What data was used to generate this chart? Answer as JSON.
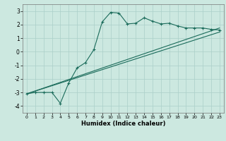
{
  "xlabel": "Humidex (Indice chaleur)",
  "bg_color": "#cce8e0",
  "grid_color": "#aacfc8",
  "line_color": "#1a6b5a",
  "xlim": [
    -0.5,
    23.5
  ],
  "ylim": [
    -4.5,
    3.5
  ],
  "xticks": [
    0,
    1,
    2,
    3,
    4,
    5,
    6,
    7,
    8,
    9,
    10,
    11,
    12,
    13,
    14,
    15,
    16,
    17,
    18,
    19,
    20,
    21,
    22,
    23
  ],
  "yticks": [
    -4,
    -3,
    -2,
    -1,
    0,
    1,
    2,
    3
  ],
  "line1_x": [
    0,
    1,
    2,
    3,
    4,
    5,
    6,
    7,
    8,
    9,
    10,
    11,
    12,
    13,
    14,
    15,
    16,
    17,
    18,
    19,
    20,
    21,
    22,
    23
  ],
  "line1_y": [
    -3.1,
    -3.0,
    -3.0,
    -3.0,
    -3.8,
    -2.3,
    -1.2,
    -0.8,
    0.15,
    2.2,
    2.9,
    2.85,
    2.05,
    2.1,
    2.5,
    2.25,
    2.05,
    2.1,
    1.9,
    1.75,
    1.75,
    1.75,
    1.65,
    1.6
  ],
  "line2_x": [
    0,
    23
  ],
  "line2_y": [
    -3.1,
    1.75
  ],
  "line3_x": [
    0,
    23
  ],
  "line3_y": [
    -3.1,
    1.45
  ]
}
